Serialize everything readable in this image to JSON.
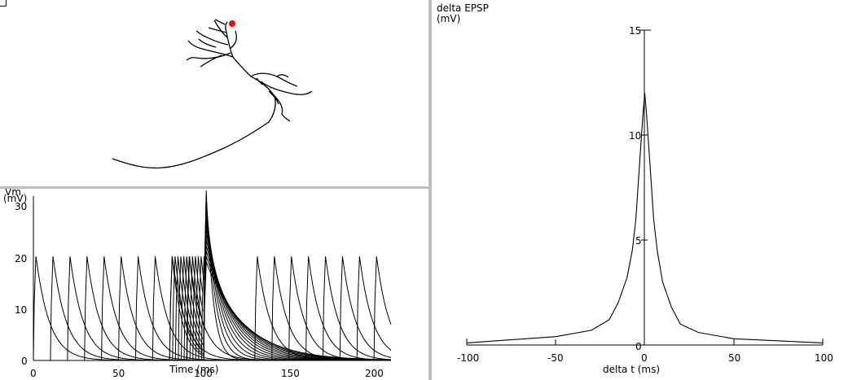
{
  "morphology": {
    "marker_color": "#ff0000"
  },
  "vm_plot": {
    "ylabel_line1": "Vm",
    "ylabel_line2": "(mV)",
    "xlabel": "Time (ms)",
    "y_ticks": [
      "0",
      "10",
      "20",
      "30"
    ],
    "x_ticks": [
      "0",
      "50",
      "100",
      "150",
      "200"
    ]
  },
  "epsp_plot": {
    "ylabel_line1": "delta EPSP",
    "ylabel_line2": "(mV)",
    "xlabel": "delta t (ms)",
    "y_ticks": [
      "0",
      "5",
      "10",
      "15"
    ],
    "x_ticks": [
      "-100",
      "-50",
      "0",
      "50",
      "100"
    ]
  },
  "chart_data": [
    {
      "type": "line",
      "title": "",
      "xlabel": "Time (ms)",
      "ylabel": "Vm (mV)",
      "xlim": [
        0,
        210
      ],
      "ylim": [
        0,
        30
      ],
      "description_series": "overlaid voltage traces; presynaptic train of EPSPs (~19 mV peaks every ~10 ms) and postsynaptic response peaking ~31 mV near t=100 ms",
      "spike_times_pre": [
        0,
        10,
        20,
        30,
        40,
        50,
        60,
        70,
        80,
        90,
        130,
        140,
        150,
        160,
        170,
        180,
        190,
        200
      ],
      "peak_pre": 19,
      "post_peak": 31,
      "post_time": 100
    },
    {
      "type": "line",
      "title": "",
      "xlabel": "delta t (ms)",
      "ylabel": "delta EPSP (mV)",
      "xlim": [
        -100,
        100
      ],
      "ylim": [
        0,
        15
      ],
      "x": [
        -100,
        -50,
        -30,
        -20,
        -15,
        -10,
        -7,
        -5,
        -3,
        -1,
        0,
        1,
        3,
        5,
        7,
        10,
        15,
        20,
        30,
        50,
        100
      ],
      "y": [
        0.1,
        0.4,
        0.7,
        1.2,
        2.0,
        3.2,
        4.5,
        6.0,
        8.5,
        11.0,
        12.0,
        11.0,
        8.5,
        6.0,
        4.5,
        3.0,
        1.8,
        1.0,
        0.6,
        0.3,
        0.1
      ]
    }
  ]
}
